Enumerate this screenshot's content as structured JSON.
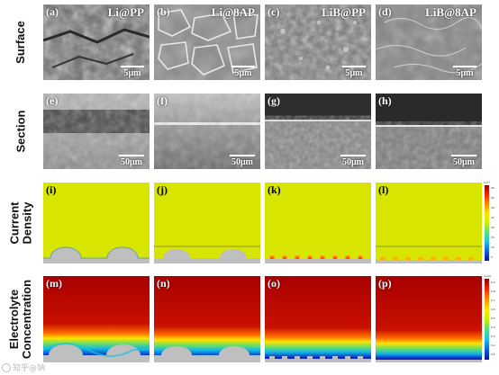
{
  "rows": [
    {
      "id": "surface",
      "label": "Surface"
    },
    {
      "id": "section",
      "label": "Section"
    },
    {
      "id": "current",
      "label": "Current\nDensity"
    },
    {
      "id": "electrolyte",
      "label": "Electrolyte\nConcentration"
    }
  ],
  "panels": [
    {
      "letter": "(a)",
      "title": "Li@PP",
      "scale": "5μm"
    },
    {
      "letter": "(b)",
      "title": "Li@8AP",
      "scale": "5μm"
    },
    {
      "letter": "(c)",
      "title": "LiB@PP",
      "scale": "5μm"
    },
    {
      "letter": "(d)",
      "title": "LiB@8AP",
      "scale": "5μm"
    },
    {
      "letter": "(e)",
      "scale": "50μm"
    },
    {
      "letter": "(f)",
      "scale": "50μm"
    },
    {
      "letter": "(g)",
      "scale": "50μm"
    },
    {
      "letter": "(h)",
      "scale": "50μm"
    },
    {
      "letter": "(i)"
    },
    {
      "letter": "(j)"
    },
    {
      "letter": "(k)"
    },
    {
      "letter": "(l)"
    },
    {
      "letter": "(m)"
    },
    {
      "letter": "(n)"
    },
    {
      "letter": "(o)"
    },
    {
      "letter": "(p)"
    }
  ],
  "colorbar_current": {
    "unit": "A/m²",
    "ticks": [
      "40",
      "35",
      "30",
      "25",
      "20",
      "15",
      "10",
      "5"
    ]
  },
  "colorbar_electrolyte": {
    "unit": "mol/L",
    "ticks": [
      "0.9",
      "0.8",
      "0.7",
      "0.6",
      "0.5",
      "0.4",
      "0.3",
      "0.2",
      "0.1"
    ]
  },
  "watermark": "知乎@钠"
}
